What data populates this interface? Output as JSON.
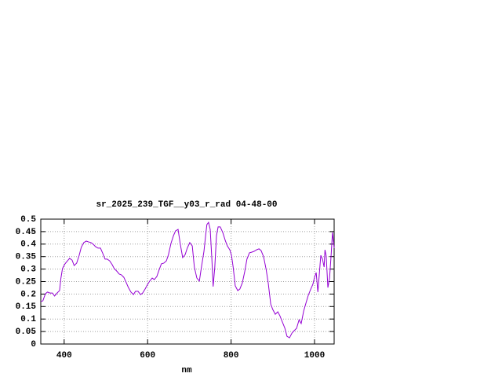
{
  "chart_data": {
    "type": "line",
    "title": "sr_2025_239_TGF__y03_r_rad 04-48-00",
    "x_label": "nm",
    "xlim": [
      344,
      1047
    ],
    "xticks": [
      400,
      600,
      800,
      1000
    ],
    "ylim": [
      0,
      0.5
    ],
    "yticks": [
      0,
      0.05,
      0.1,
      0.15,
      0.2,
      0.25,
      0.3,
      0.35,
      0.4,
      0.45,
      0.5
    ],
    "grid": true,
    "series": [
      {
        "color": "#9400d3",
        "x": [
          344,
          349,
          355,
          360,
          366,
          372,
          377,
          383,
          389,
          392,
          396,
          402,
          408,
          413,
          419,
          424,
          430,
          436,
          441,
          447,
          453,
          458,
          464,
          470,
          475,
          481,
          487,
          492,
          498,
          503,
          509,
          515,
          520,
          526,
          532,
          537,
          543,
          549,
          554,
          560,
          566,
          571,
          577,
          583,
          588,
          594,
          599,
          605,
          611,
          616,
          622,
          628,
          633,
          639,
          645,
          650,
          656,
          662,
          667,
          673,
          678,
          684,
          690,
          695,
          701,
          707,
          712,
          718,
          724,
          729,
          735,
          739,
          742,
          746,
          750,
          754,
          757,
          761,
          765,
          769,
          774,
          780,
          786,
          791,
          797,
          801,
          805,
          810,
          816,
          821,
          827,
          833,
          838,
          844,
          850,
          855,
          861,
          867,
          872,
          878,
          884,
          889,
          895,
          900,
          906,
          912,
          917,
          923,
          929,
          934,
          940,
          946,
          951,
          957,
          963,
          968,
          974,
          980,
          985,
          991,
          996,
          1000,
          1004,
          1008,
          1011,
          1015,
          1019,
          1023,
          1025,
          1028,
          1032,
          1036,
          1040,
          1043,
          1047
        ],
        "values": [
          0.17,
          0.173,
          0.201,
          0.208,
          0.204,
          0.204,
          0.192,
          0.204,
          0.214,
          0.261,
          0.302,
          0.321,
          0.333,
          0.343,
          0.336,
          0.314,
          0.324,
          0.355,
          0.387,
          0.406,
          0.412,
          0.409,
          0.406,
          0.399,
          0.39,
          0.384,
          0.384,
          0.365,
          0.34,
          0.34,
          0.333,
          0.318,
          0.302,
          0.292,
          0.28,
          0.277,
          0.267,
          0.245,
          0.226,
          0.208,
          0.198,
          0.211,
          0.211,
          0.198,
          0.204,
          0.22,
          0.236,
          0.252,
          0.264,
          0.258,
          0.27,
          0.299,
          0.321,
          0.324,
          0.333,
          0.358,
          0.403,
          0.434,
          0.453,
          0.459,
          0.403,
          0.346,
          0.358,
          0.384,
          0.406,
          0.393,
          0.308,
          0.264,
          0.252,
          0.308,
          0.371,
          0.434,
          0.478,
          0.487,
          0.459,
          0.34,
          0.23,
          0.308,
          0.434,
          0.469,
          0.469,
          0.447,
          0.415,
          0.393,
          0.377,
          0.355,
          0.308,
          0.233,
          0.214,
          0.22,
          0.245,
          0.292,
          0.34,
          0.365,
          0.368,
          0.371,
          0.377,
          0.381,
          0.374,
          0.349,
          0.299,
          0.245,
          0.16,
          0.138,
          0.119,
          0.129,
          0.113,
          0.088,
          0.063,
          0.031,
          0.025,
          0.044,
          0.053,
          0.063,
          0.097,
          0.082,
          0.132,
          0.167,
          0.195,
          0.22,
          0.239,
          0.267,
          0.286,
          0.208,
          0.27,
          0.355,
          0.34,
          0.308,
          0.377,
          0.352,
          0.226,
          0.264,
          0.362,
          0.447,
          0.384
        ]
      }
    ]
  }
}
